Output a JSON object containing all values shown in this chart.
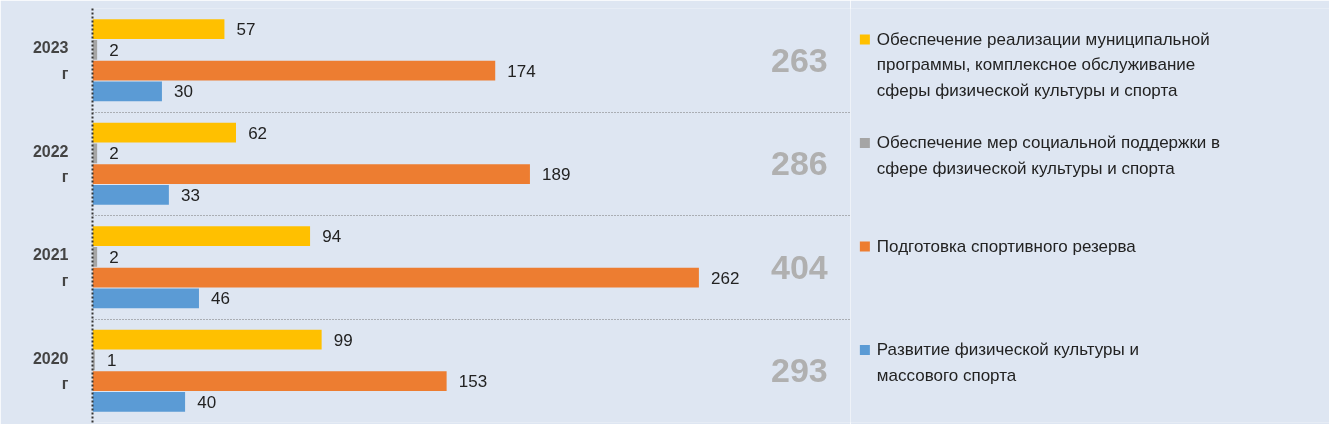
{
  "chart_data": {
    "type": "bar",
    "orientation": "horizontal",
    "categories": [
      "2023 г",
      "2022 г",
      "2021 г",
      "2020 г"
    ],
    "series": [
      {
        "name": "Обеспечение реализации муниципальной программы, комплексное обслуживание сферы физической культуры и спорта",
        "color": "#ffc000",
        "values": [
          57,
          62,
          94,
          99
        ]
      },
      {
        "name": "Обеспечение мер социальной поддержки в сфере физической культуры и спорта",
        "color": "#a5a5a5",
        "values": [
          2,
          2,
          2,
          1
        ]
      },
      {
        "name": "Подготовка спортивного резерва",
        "color": "#ed7d31",
        "values": [
          174,
          189,
          262,
          153
        ]
      },
      {
        "name": "Развитие физической культуры и массового спорта",
        "color": "#5b9bd5",
        "values": [
          30,
          33,
          46,
          40
        ]
      }
    ],
    "data_labels": true,
    "annotations": [
      "263",
      "286",
      "404",
      "293"
    ],
    "legend": "right",
    "grid": true
  }
}
